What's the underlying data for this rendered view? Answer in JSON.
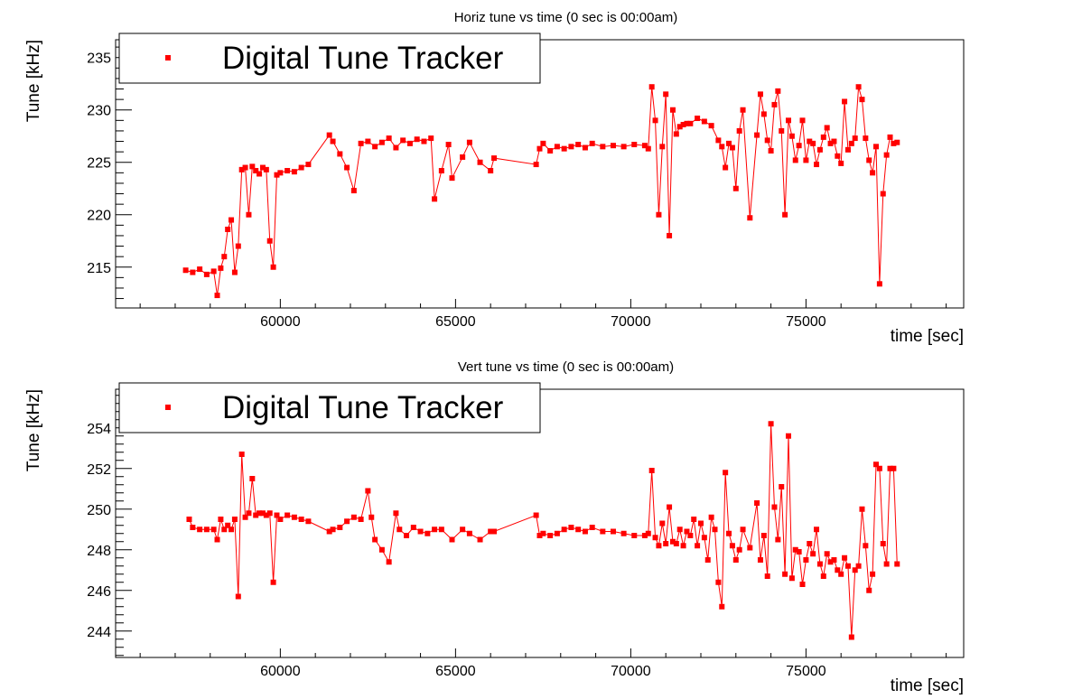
{
  "chart_data": [
    {
      "type": "line",
      "title": "Horiz tune vs time (0 sec is 00:00am)",
      "xlabel": "time [sec]",
      "ylabel": "Tune [kHz]",
      "xlim": [
        55300,
        79500
      ],
      "ylim": [
        211.1,
        236.7
      ],
      "xticks": [
        60000,
        65000,
        70000,
        75000
      ],
      "yticks": [
        215,
        220,
        225,
        230,
        235
      ],
      "grid": false,
      "legend_position": "top-left",
      "series": [
        {
          "name": "Digital Tune Tracker",
          "color": "#ff0000",
          "x": [
            57300,
            57500,
            57700,
            57900,
            58100,
            58200,
            58300,
            58400,
            58500,
            58600,
            58700,
            58800,
            58900,
            59000,
            59100,
            59200,
            59300,
            59400,
            59500,
            59600,
            59700,
            59800,
            59900,
            60000,
            60200,
            60400,
            60600,
            60800,
            61400,
            61500,
            61700,
            61900,
            62100,
            62300,
            62500,
            62700,
            62900,
            63100,
            63300,
            63500,
            63700,
            63900,
            64100,
            64300,
            64400,
            64600,
            64800,
            64900,
            65200,
            65400,
            65700,
            66000,
            66100,
            67300,
            67400,
            67500,
            67700,
            67900,
            68100,
            68300,
            68500,
            68700,
            68900,
            69200,
            69500,
            69800,
            70100,
            70400,
            70500,
            70600,
            70700,
            70800,
            70900,
            71000,
            71100,
            71200,
            71300,
            71400,
            71500,
            71600,
            71700,
            71900,
            72100,
            72300,
            72500,
            72600,
            72700,
            72800,
            72900,
            73000,
            73100,
            73200,
            73400,
            73600,
            73700,
            73800,
            73900,
            74000,
            74100,
            74200,
            74300,
            74400,
            74500,
            74600,
            74700,
            74800,
            74900,
            75000,
            75100,
            75200,
            75300,
            75400,
            75500,
            75600,
            75700,
            75800,
            75900,
            76000,
            76100,
            76200,
            76300,
            76400,
            76500,
            76600,
            76700,
            76800,
            76900,
            77000,
            77100,
            77200,
            77300,
            77400,
            77500,
            77600
          ],
          "y": [
            214.7,
            214.5,
            214.8,
            214.3,
            214.6,
            212.3,
            214.9,
            216.0,
            218.6,
            219.5,
            214.5,
            217.0,
            224.3,
            224.5,
            220.0,
            224.6,
            224.2,
            223.9,
            224.5,
            224.3,
            217.5,
            215.0,
            223.8,
            224.0,
            224.2,
            224.1,
            224.5,
            224.8,
            227.6,
            227.0,
            225.8,
            224.5,
            222.3,
            226.8,
            227.0,
            226.5,
            226.9,
            227.3,
            226.4,
            227.1,
            226.8,
            227.2,
            227.0,
            227.3,
            221.5,
            224.2,
            226.7,
            223.5,
            225.5,
            226.9,
            225.0,
            224.2,
            225.4,
            224.8,
            226.3,
            226.8,
            226.1,
            226.5,
            226.3,
            226.5,
            226.7,
            226.4,
            226.8,
            226.5,
            226.6,
            226.5,
            226.7,
            226.6,
            226.3,
            232.2,
            229.0,
            220.0,
            226.5,
            231.5,
            218.0,
            230.0,
            227.7,
            228.4,
            228.6,
            228.7,
            228.7,
            229.2,
            228.9,
            228.5,
            227.1,
            226.5,
            224.5,
            226.8,
            226.4,
            222.5,
            228.0,
            230.0,
            219.7,
            227.6,
            231.5,
            229.6,
            227.1,
            226.1,
            230.5,
            231.8,
            228.0,
            220.0,
            229.0,
            227.5,
            225.2,
            226.6,
            229.0,
            225.2,
            227.0,
            226.8,
            224.8,
            226.2,
            227.4,
            228.3,
            226.8,
            227.0,
            225.6,
            224.9,
            230.8,
            226.2,
            226.8,
            227.3,
            232.2,
            231.0,
            227.3,
            225.2,
            224.0,
            226.5,
            213.4,
            222.0,
            225.7,
            227.4,
            226.8,
            226.9
          ]
        }
      ]
    },
    {
      "type": "line",
      "title": "Vert tune vs time (0 sec is 00:00am)",
      "xlabel": "time [sec]",
      "ylabel": "Tune [kHz]",
      "xlim": [
        55300,
        79500
      ],
      "ylim": [
        242.7,
        255.9
      ],
      "xticks": [
        60000,
        65000,
        70000,
        75000
      ],
      "yticks": [
        244,
        246,
        248,
        250,
        252,
        254
      ],
      "grid": false,
      "legend_position": "top-left",
      "series": [
        {
          "name": "Digital Tune Tracker",
          "color": "#ff0000",
          "x": [
            57400,
            57500,
            57700,
            57900,
            58100,
            58200,
            58300,
            58400,
            58500,
            58600,
            58700,
            58800,
            58900,
            59000,
            59100,
            59200,
            59300,
            59400,
            59500,
            59600,
            59700,
            59800,
            59900,
            60000,
            60200,
            60400,
            60600,
            60800,
            61400,
            61500,
            61700,
            61900,
            62100,
            62300,
            62500,
            62600,
            62700,
            62900,
            63100,
            63300,
            63400,
            63600,
            63800,
            64000,
            64200,
            64400,
            64600,
            64900,
            65200,
            65400,
            65700,
            66000,
            66100,
            67300,
            67400,
            67500,
            67700,
            67900,
            68100,
            68300,
            68500,
            68700,
            68900,
            69200,
            69500,
            69800,
            70100,
            70400,
            70500,
            70600,
            70700,
            70800,
            70900,
            71000,
            71100,
            71200,
            71300,
            71400,
            71500,
            71600,
            71700,
            71800,
            71900,
            72000,
            72100,
            72200,
            72300,
            72400,
            72500,
            72600,
            72700,
            72800,
            72900,
            73000,
            73100,
            73200,
            73400,
            73600,
            73700,
            73800,
            73900,
            74000,
            74100,
            74200,
            74300,
            74400,
            74500,
            74600,
            74700,
            74800,
            74900,
            75000,
            75100,
            75200,
            75300,
            75400,
            75500,
            75600,
            75700,
            75800,
            75900,
            76000,
            76100,
            76200,
            76300,
            76400,
            76500,
            76600,
            76700,
            76800,
            76900,
            77000,
            77100,
            77200,
            77300,
            77400,
            77500,
            77600
          ],
          "y": [
            249.5,
            249.1,
            249.0,
            249.0,
            249.0,
            248.5,
            249.5,
            249.0,
            249.2,
            249.0,
            249.5,
            245.7,
            252.7,
            249.6,
            249.8,
            251.5,
            249.7,
            249.8,
            249.8,
            249.7,
            249.8,
            246.4,
            249.7,
            249.5,
            249.7,
            249.6,
            249.5,
            249.4,
            248.9,
            249.0,
            249.1,
            249.4,
            249.6,
            249.5,
            250.9,
            249.6,
            248.5,
            248.0,
            247.4,
            249.8,
            249.0,
            248.7,
            249.1,
            248.9,
            248.8,
            249.0,
            249.0,
            248.5,
            249.0,
            248.8,
            248.5,
            248.9,
            248.9,
            249.7,
            248.7,
            248.8,
            248.7,
            248.8,
            249.0,
            249.1,
            249.0,
            248.9,
            249.1,
            248.9,
            248.9,
            248.8,
            248.7,
            248.7,
            248.8,
            251.9,
            248.6,
            248.2,
            249.3,
            248.3,
            250.1,
            248.4,
            248.3,
            249.0,
            248.2,
            248.9,
            248.7,
            249.5,
            248.2,
            249.3,
            248.6,
            247.5,
            249.6,
            249.0,
            246.4,
            245.2,
            251.8,
            248.8,
            248.2,
            247.5,
            248.0,
            249.0,
            248.1,
            250.3,
            247.5,
            248.7,
            246.7,
            254.2,
            250.1,
            248.5,
            251.1,
            246.8,
            253.6,
            246.6,
            248.0,
            247.9,
            246.3,
            247.5,
            248.3,
            247.8,
            249.0,
            247.3,
            246.7,
            247.8,
            247.4,
            247.5,
            247.0,
            246.8,
            247.6,
            247.2,
            243.7,
            247.0,
            247.2,
            250.0,
            248.2,
            246.0,
            246.8,
            252.2,
            252.0,
            248.3,
            247.3,
            252.0,
            252.0,
            247.3
          ]
        }
      ]
    }
  ]
}
